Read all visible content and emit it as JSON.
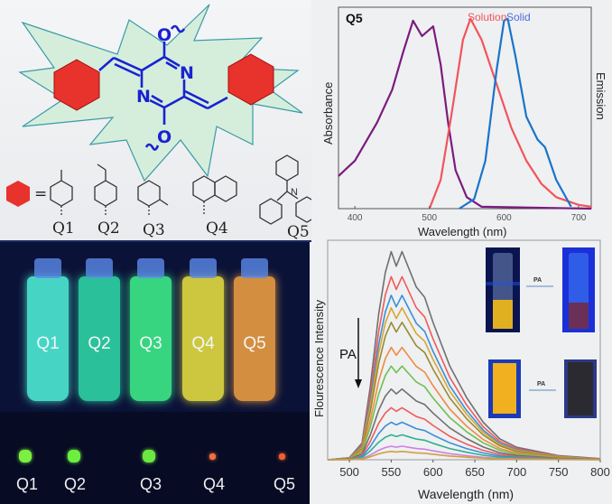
{
  "structure": {
    "atoms": {
      "n_right": "N",
      "n_left": "N",
      "o_top": "O",
      "o_bottom": "O"
    },
    "equals": "=",
    "substituents": [
      "Q1",
      "Q2",
      "Q3",
      "Q4",
      "Q5"
    ],
    "colors": {
      "core": "#1a22d0",
      "aryl": "#e8322c",
      "burst": "#d5eedb"
    }
  },
  "photo": {
    "vial_labels": [
      "Q1",
      "Q2",
      "Q3",
      "Q4",
      "Q5"
    ],
    "vial_colors": [
      "#4ff0d8",
      "#2fd8a8",
      "#3ef08a",
      "#e8e040",
      "#f0a040"
    ],
    "solid_labels": [
      "Q1",
      "Q2",
      "Q3",
      "Q4",
      "Q5"
    ],
    "solid_colors": [
      "#7cf040",
      "#6cf040",
      "#6ce840",
      "#f07040",
      "#f06030"
    ]
  },
  "chart_data": [
    {
      "type": "line",
      "panel_label": "Q5",
      "xlabel": "Wavelength (nm)",
      "ylabel": "Absorbance",
      "ylabel_right": "Emission",
      "xlim": [
        378,
        717
      ],
      "ylim": [
        0,
        1.05
      ],
      "xticks": [
        400,
        500,
        600,
        700
      ],
      "series": [
        {
          "color": "#7b1b7e",
          "points": [
            [
              378,
              0.17
            ],
            [
              400,
              0.25
            ],
            [
              430,
              0.45
            ],
            [
              450,
              0.62
            ],
            [
              465,
              0.82
            ],
            [
              478,
              0.98
            ],
            [
              490,
              0.9
            ],
            [
              505,
              0.95
            ],
            [
              515,
              0.75
            ],
            [
              525,
              0.45
            ],
            [
              535,
              0.2
            ],
            [
              550,
              0.06
            ],
            [
              570,
              0.01
            ],
            [
              717,
              0
            ]
          ]
        },
        {
          "name": "Solution",
          "color": "#f2545a",
          "points": [
            [
              500,
              0
            ],
            [
              515,
              0.15
            ],
            [
              530,
              0.5
            ],
            [
              545,
              0.88
            ],
            [
              555,
              0.99
            ],
            [
              570,
              0.88
            ],
            [
              590,
              0.65
            ],
            [
              610,
              0.42
            ],
            [
              630,
              0.25
            ],
            [
              650,
              0.13
            ],
            [
              670,
              0.06
            ],
            [
              700,
              0.02
            ],
            [
              717,
              0.01
            ]
          ]
        },
        {
          "name": "Solid",
          "color": "#1a74c9",
          "points": [
            [
              540,
              0
            ],
            [
              560,
              0.05
            ],
            [
              575,
              0.25
            ],
            [
              590,
              0.72
            ],
            [
              600,
              0.98
            ],
            [
              605,
              0.99
            ],
            [
              615,
              0.8
            ],
            [
              630,
              0.48
            ],
            [
              645,
              0.36
            ],
            [
              655,
              0.32
            ],
            [
              670,
              0.15
            ],
            [
              690,
              0.01
            ]
          ]
        }
      ]
    },
    {
      "type": "line",
      "xlabel": "Wavelength (nm)",
      "ylabel": "Flourescence Intensity",
      "annotation": "PA",
      "inset_labels": [
        "PA",
        "PA"
      ],
      "xlim": [
        474,
        800
      ],
      "ylim": [
        0,
        1.02
      ],
      "xticks": [
        500,
        550,
        600,
        650,
        700,
        750,
        800
      ],
      "profile": [
        [
          474,
          0
        ],
        [
          500,
          0.01
        ],
        [
          515,
          0.08
        ],
        [
          525,
          0.35
        ],
        [
          535,
          0.7
        ],
        [
          543,
          0.9
        ],
        [
          550,
          1.0
        ],
        [
          556,
          0.93
        ],
        [
          563,
          1.0
        ],
        [
          570,
          0.93
        ],
        [
          580,
          0.83
        ],
        [
          590,
          0.78
        ],
        [
          600,
          0.66
        ],
        [
          620,
          0.45
        ],
        [
          640,
          0.3
        ],
        [
          660,
          0.18
        ],
        [
          680,
          0.1
        ],
        [
          700,
          0.06
        ],
        [
          750,
          0.02
        ],
        [
          800,
          0.005
        ]
      ],
      "series_peaks": [
        1.0,
        0.88,
        0.79,
        0.73,
        0.66,
        0.54,
        0.45,
        0.34,
        0.25,
        0.18,
        0.12,
        0.065,
        0.04
      ],
      "series_colors": [
        "#707070",
        "#f05a5a",
        "#3a8fd8",
        "#d9a630",
        "#9a8a30",
        "#f08a40",
        "#6ec050",
        "#707070",
        "#f05a5a",
        "#3a8fd8",
        "#30b090",
        "#d080e0",
        "#d0a040"
      ]
    }
  ]
}
